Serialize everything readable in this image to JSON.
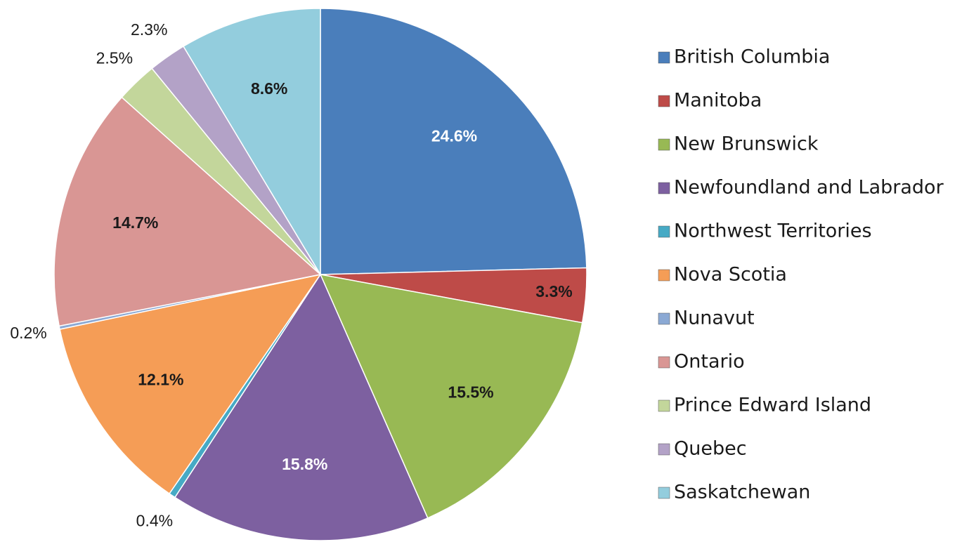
{
  "chart_data": {
    "type": "pie",
    "categories": [
      "British Columbia",
      "Manitoba",
      "New Brunswick",
      "Newfoundland and Labrador",
      "Northwest Territories",
      "Nova Scotia",
      "Nunavut",
      "Ontario",
      "Prince Edward Island",
      "Quebec",
      "Saskatchewan"
    ],
    "values": [
      24.6,
      3.3,
      15.5,
      15.8,
      0.4,
      12.1,
      0.2,
      14.7,
      2.5,
      2.3,
      8.6
    ],
    "value_labels": [
      "24.6%",
      "3.3%",
      "15.5%",
      "15.8%",
      "0.4%",
      "12.1%",
      "0.2%",
      "14.7%",
      "2.5%",
      "2.3%",
      "8.6%"
    ],
    "colors": [
      "#4a7ebb",
      "#be4b48",
      "#98b954",
      "#7d60a0",
      "#46aac5",
      "#f59d56",
      "#8ba9d4",
      "#d99694",
      "#c3d69b",
      "#b3a2c7",
      "#93cddd"
    ],
    "label_colors": [
      "#ffffff",
      "#1a1a1a",
      "#1a1a1a",
      "#ffffff",
      "#1a1a1a",
      "#1a1a1a",
      "#1a1a1a",
      "#1a1a1a",
      "#1a1a1a",
      "#1a1a1a",
      "#1a1a1a"
    ],
    "legend": "right"
  }
}
